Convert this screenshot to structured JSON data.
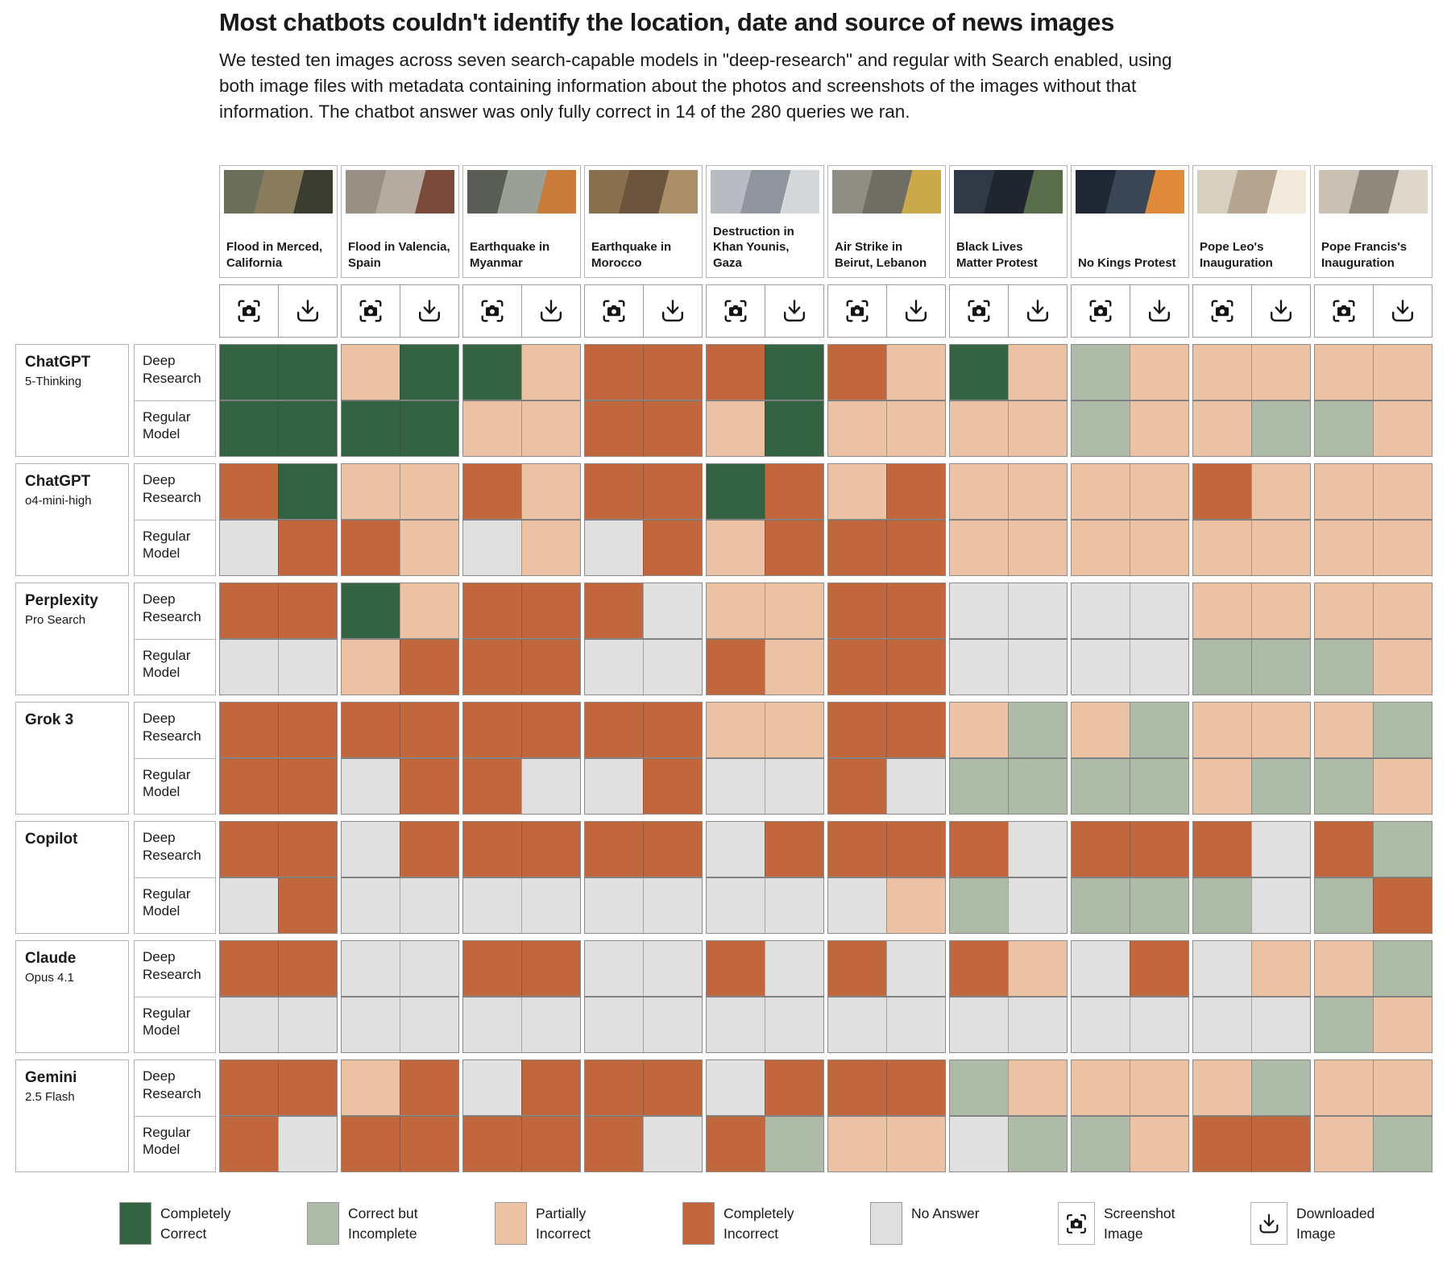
{
  "chart_data": {
    "type": "heatmap",
    "title": "Most chatbots couldn't identify the location, date and source of news images",
    "subtitle": "We tested ten images across seven search-capable models in \"deep-research\" and regular with Search enabled, using both image files with metadata containing information about the photos and screenshots of the images without that information. The chatbot answer was only fully correct in 14 of the 280 queries we ran.",
    "value_scale": {
      "CC": "Completely Correct",
      "CI": "Correct but Incomplete",
      "PI": "Partially Incorrect",
      "XX": "Completely Incorrect",
      "NA": "No Answer"
    },
    "colors": {
      "CC": "#336342",
      "CI": "#AEBBA9",
      "PI": "#EBC2A4",
      "XX": "#C2673D",
      "NA": "#E0E0E0"
    },
    "variants": [
      "Screenshot Image",
      "Downloaded Image"
    ],
    "images": [
      {
        "label": "Flood in Merced, California",
        "thumb_colors": [
          "#6b6f5a",
          "#8a7d5e",
          "#3a3d2f"
        ]
      },
      {
        "label": "Flood in Valencia, Spain",
        "thumb_colors": [
          "#9a8f85",
          "#b5aba0",
          "#7a4a3a"
        ]
      },
      {
        "label": "Earthquake in Myanmar",
        "thumb_colors": [
          "#5a5d55",
          "#9aa095",
          "#c97b3a"
        ]
      },
      {
        "label": "Earthquake in Morocco",
        "thumb_colors": [
          "#8a6f4f",
          "#6b543c",
          "#a98e68"
        ]
      },
      {
        "label": "Destruction in Khan Younis, Gaza",
        "thumb_colors": [
          "#b8bcc0",
          "#8f959c",
          "#d5d8da"
        ]
      },
      {
        "label": "Air Strike in Beirut, Lebanon",
        "thumb_colors": [
          "#8f8d84",
          "#6f6d64",
          "#c9a94a"
        ]
      },
      {
        "label": "Black Lives Matter Protest",
        "thumb_colors": [
          "#2f3a46",
          "#1f2630",
          "#5a6d4a"
        ]
      },
      {
        "label": "No Kings Protest",
        "thumb_colors": [
          "#1e2733",
          "#3a4656",
          "#e08a3c"
        ]
      },
      {
        "label": "Pope Leo's Inauguration",
        "thumb_colors": [
          "#d9cfc0",
          "#b5a58e",
          "#f0e9dc"
        ]
      },
      {
        "label": "Pope Francis's Inauguration",
        "thumb_colors": [
          "#c9c2b4",
          "#8f8a7e",
          "#ded8cc"
        ]
      }
    ],
    "models": [
      {
        "name": "ChatGPT",
        "sub": "5-Thinking",
        "modes": [
          {
            "label": "Deep Research",
            "cells": [
              "CC",
              "CC",
              "PI",
              "CC",
              "CC",
              "PI",
              "XX",
              "XX",
              "XX",
              "CC",
              "XX",
              "PI",
              "CC",
              "PI",
              "CI",
              "PI",
              "PI",
              "PI",
              "PI",
              "PI"
            ]
          },
          {
            "label": "Regular Model",
            "cells": [
              "CC",
              "CC",
              "CC",
              "CC",
              "PI",
              "PI",
              "XX",
              "XX",
              "PI",
              "CC",
              "PI",
              "PI",
              "PI",
              "PI",
              "CI",
              "PI",
              "PI",
              "CI",
              "CI",
              "PI"
            ]
          }
        ]
      },
      {
        "name": "ChatGPT",
        "sub": "o4-mini-high",
        "modes": [
          {
            "label": "Deep Research",
            "cells": [
              "XX",
              "CC",
              "PI",
              "PI",
              "XX",
              "PI",
              "XX",
              "XX",
              "CC",
              "XX",
              "PI",
              "XX",
              "PI",
              "PI",
              "PI",
              "PI",
              "XX",
              "PI",
              "PI",
              "PI"
            ]
          },
          {
            "label": "Regular Model",
            "cells": [
              "NA",
              "XX",
              "XX",
              "PI",
              "NA",
              "PI",
              "NA",
              "XX",
              "PI",
              "XX",
              "XX",
              "XX",
              "PI",
              "PI",
              "PI",
              "PI",
              "PI",
              "PI",
              "PI",
              "PI"
            ]
          }
        ]
      },
      {
        "name": "Perplexity",
        "sub": "Pro Search",
        "modes": [
          {
            "label": "Deep Research",
            "cells": [
              "XX",
              "XX",
              "CC",
              "PI",
              "XX",
              "XX",
              "XX",
              "NA",
              "PI",
              "PI",
              "XX",
              "XX",
              "NA",
              "NA",
              "NA",
              "NA",
              "PI",
              "PI",
              "PI",
              "PI"
            ]
          },
          {
            "label": "Regular Model",
            "cells": [
              "NA",
              "NA",
              "PI",
              "XX",
              "XX",
              "XX",
              "NA",
              "NA",
              "XX",
              "PI",
              "XX",
              "XX",
              "NA",
              "NA",
              "NA",
              "NA",
              "CI",
              "CI",
              "CI",
              "PI"
            ]
          }
        ]
      },
      {
        "name": "Grok 3",
        "sub": "",
        "modes": [
          {
            "label": "Deep Research",
            "cells": [
              "XX",
              "XX",
              "XX",
              "XX",
              "XX",
              "XX",
              "XX",
              "XX",
              "PI",
              "PI",
              "XX",
              "XX",
              "PI",
              "CI",
              "PI",
              "CI",
              "PI",
              "PI",
              "PI",
              "CI"
            ]
          },
          {
            "label": "Regular Model",
            "cells": [
              "XX",
              "XX",
              "NA",
              "XX",
              "XX",
              "NA",
              "NA",
              "XX",
              "NA",
              "NA",
              "XX",
              "NA",
              "CI",
              "CI",
              "CI",
              "CI",
              "PI",
              "CI",
              "CI",
              "PI"
            ]
          }
        ]
      },
      {
        "name": "Copilot",
        "sub": "",
        "modes": [
          {
            "label": "Deep Research",
            "cells": [
              "XX",
              "XX",
              "NA",
              "XX",
              "XX",
              "XX",
              "XX",
              "XX",
              "NA",
              "XX",
              "XX",
              "XX",
              "XX",
              "NA",
              "XX",
              "XX",
              "XX",
              "NA",
              "XX",
              "CI"
            ]
          },
          {
            "label": "Regular Model",
            "cells": [
              "NA",
              "XX",
              "NA",
              "NA",
              "NA",
              "NA",
              "NA",
              "NA",
              "NA",
              "NA",
              "NA",
              "PI",
              "CI",
              "NA",
              "CI",
              "CI",
              "CI",
              "NA",
              "CI",
              "XX"
            ]
          }
        ]
      },
      {
        "name": "Claude",
        "sub": "Opus 4.1",
        "modes": [
          {
            "label": "Deep Research",
            "cells": [
              "XX",
              "XX",
              "NA",
              "NA",
              "XX",
              "XX",
              "NA",
              "NA",
              "XX",
              "NA",
              "XX",
              "NA",
              "XX",
              "PI",
              "NA",
              "XX",
              "NA",
              "PI",
              "PI",
              "CI"
            ]
          },
          {
            "label": "Regular Model",
            "cells": [
              "NA",
              "NA",
              "NA",
              "NA",
              "NA",
              "NA",
              "NA",
              "NA",
              "NA",
              "NA",
              "NA",
              "NA",
              "NA",
              "NA",
              "NA",
              "NA",
              "NA",
              "NA",
              "CI",
              "PI"
            ]
          }
        ]
      },
      {
        "name": "Gemini",
        "sub": "2.5 Flash",
        "modes": [
          {
            "label": "Deep Research",
            "cells": [
              "XX",
              "XX",
              "PI",
              "XX",
              "NA",
              "XX",
              "XX",
              "XX",
              "NA",
              "XX",
              "XX",
              "XX",
              "CI",
              "PI",
              "PI",
              "PI",
              "PI",
              "CI",
              "PI",
              "PI"
            ]
          },
          {
            "label": "Regular Model",
            "cells": [
              "XX",
              "NA",
              "XX",
              "XX",
              "XX",
              "XX",
              "XX",
              "NA",
              "XX",
              "CI",
              "PI",
              "PI",
              "NA",
              "CI",
              "CI",
              "PI",
              "XX",
              "XX",
              "PI",
              "CI"
            ]
          }
        ]
      }
    ],
    "legend": {
      "items": [
        {
          "code": "CC",
          "label": "Completely Correct"
        },
        {
          "code": "CI",
          "label": "Correct but Incomplete"
        },
        {
          "code": "PI",
          "label": "Partially Incorrect"
        },
        {
          "code": "XX",
          "label": "Completely Incorrect"
        },
        {
          "code": "NA",
          "label": "No Answer"
        }
      ],
      "icon_items": [
        {
          "icon": "screenshot-image-icon",
          "label": "Screenshot Image"
        },
        {
          "icon": "download-image-icon",
          "label": "Downloaded Image"
        }
      ]
    }
  }
}
